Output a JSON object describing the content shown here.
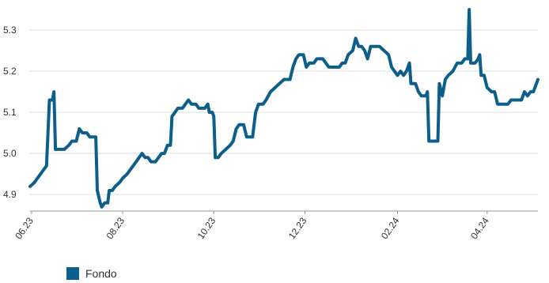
{
  "chart_data": {
    "type": "line",
    "title": "",
    "xlabel": "",
    "ylabel": "",
    "ylim": [
      4.86,
      5.35
    ],
    "y_ticks": [
      "4.9",
      "5.0",
      "5.1",
      "5.2",
      "5.3"
    ],
    "x_ticks": [
      {
        "label": "06.23",
        "date": "2023-06-01"
      },
      {
        "label": "08.23",
        "date": "2023-08-01"
      },
      {
        "label": "10.23",
        "date": "2023-10-01"
      },
      {
        "label": "12.23",
        "date": "2023-12-01"
      },
      {
        "label": "02.24",
        "date": "2024-02-01"
      },
      {
        "label": "04.24",
        "date": "2024-04-01"
      }
    ],
    "grid": "horizontal",
    "legend_position": "bottom-left",
    "series": [
      {
        "name": "Fondo",
        "color": "#0b5f8a",
        "points": [
          [
            "2023-05-31",
            4.92
          ],
          [
            "2023-06-03",
            4.93
          ],
          [
            "2023-06-05",
            4.94
          ],
          [
            "2023-06-07",
            4.95
          ],
          [
            "2023-06-09",
            4.96
          ],
          [
            "2023-06-11",
            4.97
          ],
          [
            "2023-06-13",
            5.13
          ],
          [
            "2023-06-15",
            5.13
          ],
          [
            "2023-06-16",
            5.15
          ],
          [
            "2023-06-17",
            5.01
          ],
          [
            "2023-06-19",
            5.01
          ],
          [
            "2023-06-23",
            5.01
          ],
          [
            "2023-06-26",
            5.02
          ],
          [
            "2023-06-28",
            5.03
          ],
          [
            "2023-07-01",
            5.03
          ],
          [
            "2023-07-03",
            5.06
          ],
          [
            "2023-07-05",
            5.05
          ],
          [
            "2023-07-08",
            5.05
          ],
          [
            "2023-07-10",
            5.04
          ],
          [
            "2023-07-14",
            5.04
          ],
          [
            "2023-07-15",
            4.91
          ],
          [
            "2023-07-17",
            4.88
          ],
          [
            "2023-07-18",
            4.87
          ],
          [
            "2023-07-20",
            4.88
          ],
          [
            "2023-07-22",
            4.88
          ],
          [
            "2023-07-23",
            4.91
          ],
          [
            "2023-07-25",
            4.91
          ],
          [
            "2023-07-27",
            4.92
          ],
          [
            "2023-07-30",
            4.93
          ],
          [
            "2023-08-01",
            4.94
          ],
          [
            "2023-08-04",
            4.95
          ],
          [
            "2023-08-06",
            4.96
          ],
          [
            "2023-08-08",
            4.97
          ],
          [
            "2023-08-10",
            4.98
          ],
          [
            "2023-08-12",
            4.99
          ],
          [
            "2023-08-14",
            5.0
          ],
          [
            "2023-08-16",
            4.99
          ],
          [
            "2023-08-18",
            4.99
          ],
          [
            "2023-08-20",
            4.98
          ],
          [
            "2023-08-23",
            4.98
          ],
          [
            "2023-08-25",
            4.99
          ],
          [
            "2023-08-27",
            5.0
          ],
          [
            "2023-08-29",
            5.0
          ],
          [
            "2023-08-31",
            5.02
          ],
          [
            "2023-09-02",
            5.02
          ],
          [
            "2023-09-03",
            5.09
          ],
          [
            "2023-09-05",
            5.1
          ],
          [
            "2023-09-07",
            5.11
          ],
          [
            "2023-09-10",
            5.11
          ],
          [
            "2023-09-12",
            5.12
          ],
          [
            "2023-09-14",
            5.13
          ],
          [
            "2023-09-16",
            5.12
          ],
          [
            "2023-09-19",
            5.12
          ],
          [
            "2023-09-21",
            5.11
          ],
          [
            "2023-09-25",
            5.11
          ],
          [
            "2023-09-27",
            5.12
          ],
          [
            "2023-09-28",
            5.1
          ],
          [
            "2023-09-30",
            5.1
          ],
          [
            "2023-10-01",
            5.09
          ],
          [
            "2023-10-02",
            4.99
          ],
          [
            "2023-10-04",
            4.99
          ],
          [
            "2023-10-06",
            5.0
          ],
          [
            "2023-10-09",
            5.01
          ],
          [
            "2023-10-12",
            5.02
          ],
          [
            "2023-10-14",
            5.03
          ],
          [
            "2023-10-16",
            5.06
          ],
          [
            "2023-10-18",
            5.07
          ],
          [
            "2023-10-21",
            5.07
          ],
          [
            "2023-10-23",
            5.04
          ],
          [
            "2023-10-27",
            5.04
          ],
          [
            "2023-10-29",
            5.1
          ],
          [
            "2023-10-31",
            5.12
          ],
          [
            "2023-11-03",
            5.12
          ],
          [
            "2023-11-05",
            5.13
          ],
          [
            "2023-11-08",
            5.15
          ],
          [
            "2023-11-11",
            5.16
          ],
          [
            "2023-11-14",
            5.17
          ],
          [
            "2023-11-17",
            5.18
          ],
          [
            "2023-11-21",
            5.18
          ],
          [
            "2023-11-23",
            5.21
          ],
          [
            "2023-11-25",
            5.23
          ],
          [
            "2023-11-27",
            5.24
          ],
          [
            "2023-11-30",
            5.24
          ],
          [
            "2023-12-02",
            5.21
          ],
          [
            "2023-12-04",
            5.22
          ],
          [
            "2023-12-07",
            5.22
          ],
          [
            "2023-12-09",
            5.23
          ],
          [
            "2023-12-13",
            5.23
          ],
          [
            "2023-12-15",
            5.22
          ],
          [
            "2023-12-17",
            5.21
          ],
          [
            "2023-12-20",
            5.21
          ],
          [
            "2023-12-24",
            5.21
          ],
          [
            "2023-12-26",
            5.22
          ],
          [
            "2023-12-28",
            5.22
          ],
          [
            "2023-12-30",
            5.24
          ],
          [
            "2024-01-02",
            5.25
          ],
          [
            "2024-01-04",
            5.28
          ],
          [
            "2024-01-06",
            5.26
          ],
          [
            "2024-01-08",
            5.26
          ],
          [
            "2024-01-10",
            5.25
          ],
          [
            "2024-01-12",
            5.23
          ],
          [
            "2024-01-14",
            5.26
          ],
          [
            "2024-01-17",
            5.26
          ],
          [
            "2024-01-20",
            5.26
          ],
          [
            "2024-01-23",
            5.25
          ],
          [
            "2024-01-26",
            5.24
          ],
          [
            "2024-01-28",
            5.21
          ],
          [
            "2024-01-30",
            5.2
          ],
          [
            "2024-02-01",
            5.19
          ],
          [
            "2024-02-03",
            5.2
          ],
          [
            "2024-02-05",
            5.19
          ],
          [
            "2024-02-07",
            5.2
          ],
          [
            "2024-02-09",
            5.22
          ],
          [
            "2024-02-10",
            5.17
          ],
          [
            "2024-02-13",
            5.17
          ],
          [
            "2024-02-15",
            5.15
          ],
          [
            "2024-02-17",
            5.14
          ],
          [
            "2024-02-20",
            5.14
          ],
          [
            "2024-02-21",
            5.15
          ],
          [
            "2024-02-22",
            5.03
          ],
          [
            "2024-02-28",
            5.03
          ],
          [
            "2024-02-29",
            5.17
          ],
          [
            "2024-03-02",
            5.14
          ],
          [
            "2024-03-04",
            5.18
          ],
          [
            "2024-03-06",
            5.19
          ],
          [
            "2024-03-09",
            5.2
          ],
          [
            "2024-03-12",
            5.22
          ],
          [
            "2024-03-15",
            5.22
          ],
          [
            "2024-03-17",
            5.23
          ],
          [
            "2024-03-19",
            5.23
          ],
          [
            "2024-03-20",
            5.35
          ],
          [
            "2024-03-21",
            5.22
          ],
          [
            "2024-03-24",
            5.22
          ],
          [
            "2024-03-26",
            5.23
          ],
          [
            "2024-03-27",
            5.24
          ],
          [
            "2024-03-28",
            5.19
          ],
          [
            "2024-03-30",
            5.19
          ],
          [
            "2024-04-01",
            5.16
          ],
          [
            "2024-04-04",
            5.15
          ],
          [
            "2024-04-06",
            5.15
          ],
          [
            "2024-04-08",
            5.12
          ],
          [
            "2024-04-12",
            5.12
          ],
          [
            "2024-04-15",
            5.12
          ],
          [
            "2024-04-17",
            5.13
          ],
          [
            "2024-04-20",
            5.13
          ],
          [
            "2024-04-24",
            5.13
          ],
          [
            "2024-04-26",
            5.15
          ],
          [
            "2024-04-28",
            5.14
          ],
          [
            "2024-04-30",
            5.15
          ],
          [
            "2024-05-02",
            5.15
          ],
          [
            "2024-05-04",
            5.17
          ],
          [
            "2024-05-05",
            5.18
          ]
        ]
      }
    ]
  },
  "legend": {
    "label": "Fondo",
    "color": "#0b5f8a"
  }
}
